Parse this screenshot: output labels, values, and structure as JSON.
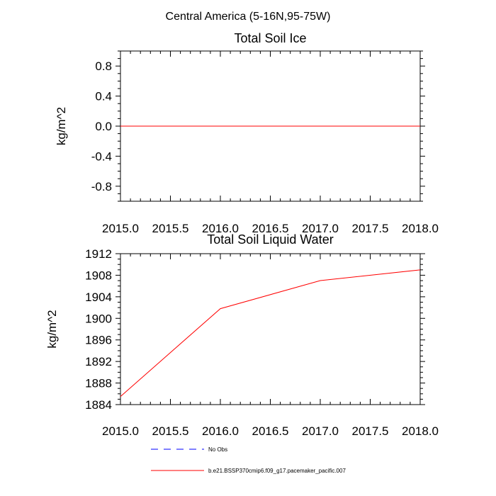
{
  "figure": {
    "title": "Central America (5-16N,95-75W)"
  },
  "colors": {
    "model_line": "#ff0000",
    "obs_line": "#0000ff",
    "axis": "#000000"
  },
  "chart_data": [
    {
      "type": "line",
      "title": "Total Soil Ice",
      "xlabel": "",
      "ylabel": "kg/m^2",
      "xlim": [
        2015.0,
        2018.0
      ],
      "ylim": [
        -1.0,
        1.0
      ],
      "x_ticks": [
        "2015.0",
        "2015.5",
        "2016.0",
        "2016.5",
        "2017.0",
        "2017.5",
        "2018.0"
      ],
      "y_ticks": [
        "0.8",
        "0.4",
        "0.0",
        "-0.4",
        "-0.8"
      ],
      "series": [
        {
          "x": [
            2015.0,
            2016.0,
            2017.0,
            2018.0
          ],
          "y": [
            0.0,
            0.0,
            0.0,
            0.0
          ]
        }
      ]
    },
    {
      "type": "line",
      "title": "Total Soil Liquid Water",
      "xlabel": "",
      "ylabel": "kg/m^2",
      "xlim": [
        2015.0,
        2018.0
      ],
      "ylim": [
        1884,
        1912
      ],
      "x_ticks": [
        "2015.0",
        "2015.5",
        "2016.0",
        "2016.5",
        "2017.0",
        "2017.5",
        "2018.0"
      ],
      "y_ticks": [
        "1912",
        "1908",
        "1904",
        "1900",
        "1896",
        "1892",
        "1888",
        "1884"
      ],
      "series": [
        {
          "x": [
            2015.0,
            2016.0,
            2017.0,
            2018.0
          ],
          "y": [
            1885.5,
            1901.8,
            1907.0,
            1909.0
          ]
        }
      ]
    }
  ],
  "legend": {
    "placement": "bottom",
    "entries": [
      {
        "label": "No Obs",
        "style": "dashed",
        "color": "#0000ff"
      },
      {
        "label": "b.e21.BSSP370cmip6.f09_g17.pacemaker_pacific.007",
        "style": "solid",
        "color": "#ff0000"
      }
    ]
  }
}
